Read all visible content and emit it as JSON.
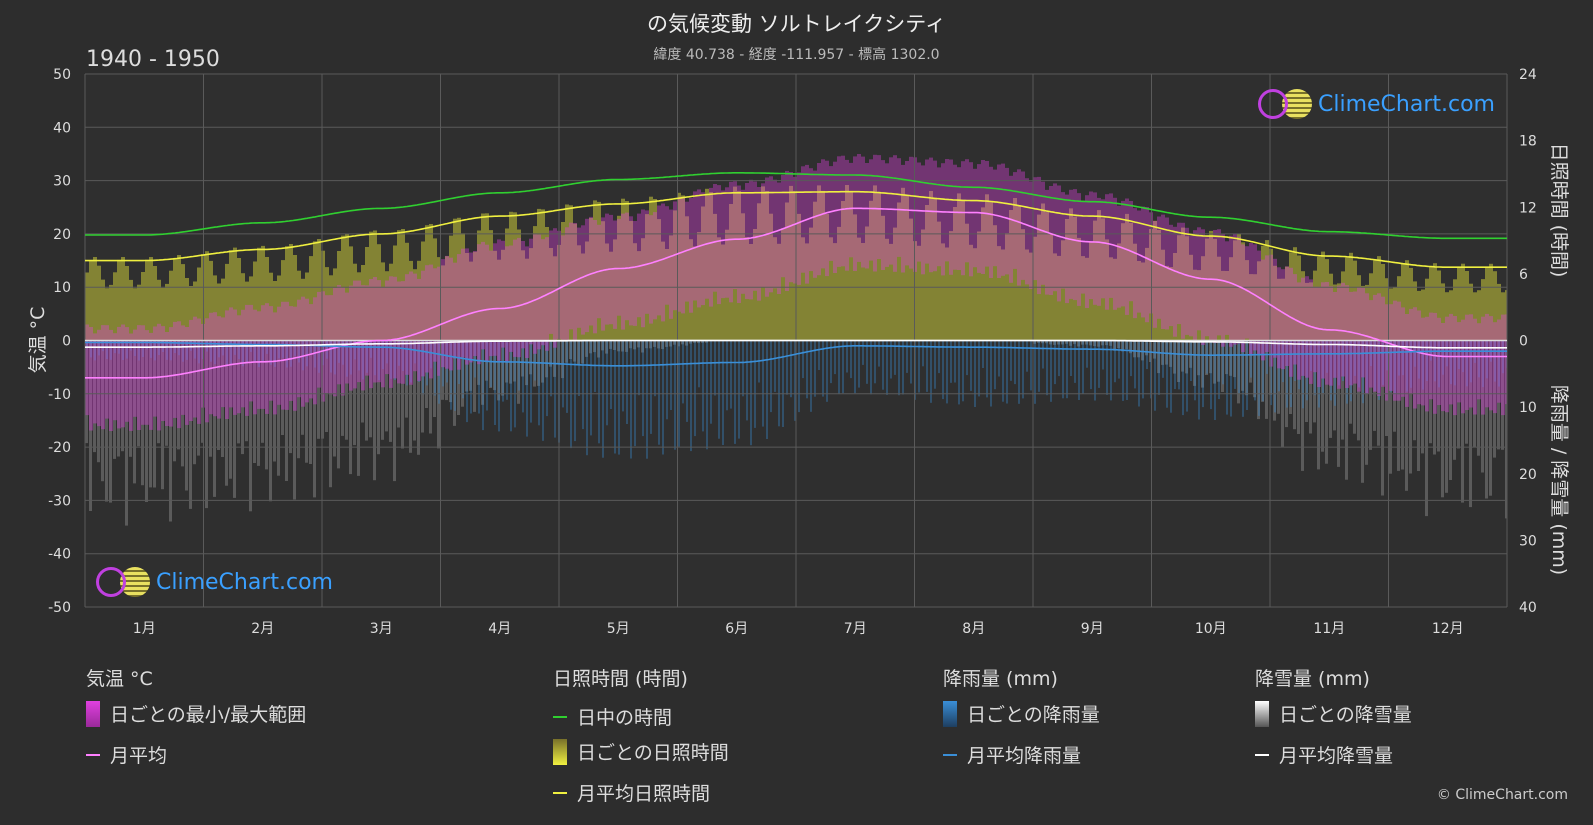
{
  "header": {
    "title": "の気候変動 ソルトレイクシティ",
    "subtitle": "緯度 40.738 - 経度 -111.957 - 標高 1302.0",
    "period": "1940 - 1950"
  },
  "axes": {
    "left_label": "気温 °C",
    "right_top_label": "日照時間 (時間)",
    "right_bottom_label": "降雨量 / 降雪量 (mm)"
  },
  "logo_text": "ClimeChart.com",
  "copyright": "© ClimeChart.com",
  "legend": {
    "temp": {
      "title": "気温 °C",
      "range": "日ごとの最小/最大範囲",
      "mean": "月平均"
    },
    "sun": {
      "title": "日照時間 (時間)",
      "daylight": "日中の時間",
      "daily": "日ごとの日照時間",
      "mean": "月平均日照時間"
    },
    "rain": {
      "title": "降雨量 (mm)",
      "daily": "日ごとの降雨量",
      "mean": "月平均降雨量"
    },
    "snow": {
      "title": "降雪量 (mm)",
      "daily": "日ごとの降雪量",
      "mean": "月平均降雪量"
    }
  },
  "colors": {
    "background": "#2d2d2d",
    "grid": "#5a5a5a",
    "temp_range": "#e040e0",
    "temp_mean": "#ff80ff",
    "daylight": "#30d030",
    "sunshine": "#c8c838",
    "sunshine_mean": "#f0f040",
    "rain": "#3a8fd8",
    "snow": "#cfcfcf"
  },
  "chart_data": {
    "type": "line",
    "categories": [
      "1月",
      "2月",
      "3月",
      "4月",
      "5月",
      "6月",
      "7月",
      "8月",
      "9月",
      "10月",
      "11月",
      "12月"
    ],
    "left_axis": {
      "label": "気温 °C",
      "ticks": [
        50,
        40,
        30,
        20,
        10,
        0,
        -10,
        -20,
        -30,
        -40,
        -50
      ],
      "ylim": [
        -50,
        50
      ]
    },
    "right_axis_top": {
      "label": "日照時間 (時間)",
      "ticks": [
        24,
        18,
        12,
        6,
        0
      ],
      "ylim": [
        0,
        24
      ]
    },
    "right_axis_bottom": {
      "label": "降雨量 / 降雪量 (mm)",
      "ticks": [
        0,
        10,
        20,
        30,
        40
      ],
      "ylim": [
        0,
        40
      ]
    },
    "series": [
      {
        "name": "日中の時間",
        "axis": "sunshine",
        "values": [
          9.5,
          10.6,
          11.9,
          13.3,
          14.5,
          15.1,
          14.9,
          13.8,
          12.5,
          11.1,
          9.8,
          9.2
        ]
      },
      {
        "name": "月平均日照時間",
        "axis": "sunshine",
        "values": [
          7.2,
          8.2,
          9.6,
          11.2,
          12.3,
          13.3,
          13.4,
          12.6,
          11.2,
          9.4,
          7.6,
          6.6
        ]
      },
      {
        "name": "月平均",
        "axis": "temperature",
        "values": [
          -7.0,
          -4.0,
          0.0,
          6.0,
          13.5,
          19.0,
          24.8,
          24.0,
          18.5,
          11.5,
          2.0,
          -3.0
        ]
      },
      {
        "name": "月平均降雨量",
        "axis": "precipitation",
        "values": [
          0.3,
          0.6,
          1.0,
          3.2,
          3.8,
          3.3,
          0.8,
          1.0,
          1.3,
          2.2,
          2.0,
          1.6
        ]
      },
      {
        "name": "月平均降雪量",
        "axis": "precipitation",
        "values": [
          1.0,
          0.8,
          0.5,
          0.1,
          0.0,
          0.0,
          0.0,
          0.0,
          0.0,
          0.2,
          0.6,
          1.1
        ]
      }
    ],
    "temperature_range": {
      "name": "日ごとの最小/最大範囲",
      "min": [
        -14,
        -11,
        -6,
        -1,
        5,
        10,
        16,
        15,
        9,
        2,
        -6,
        -11
      ],
      "max": [
        1,
        5,
        10,
        17,
        22,
        28,
        33,
        32,
        26,
        19,
        9,
        3
      ]
    },
    "daily_rain_mm": [
      3,
      4,
      6,
      14,
      18,
      16,
      8,
      10,
      9,
      12,
      10,
      7
    ],
    "daily_snow_mm": [
      28,
      26,
      22,
      10,
      2,
      0,
      0,
      0,
      1,
      8,
      22,
      27
    ],
    "grid": true
  }
}
